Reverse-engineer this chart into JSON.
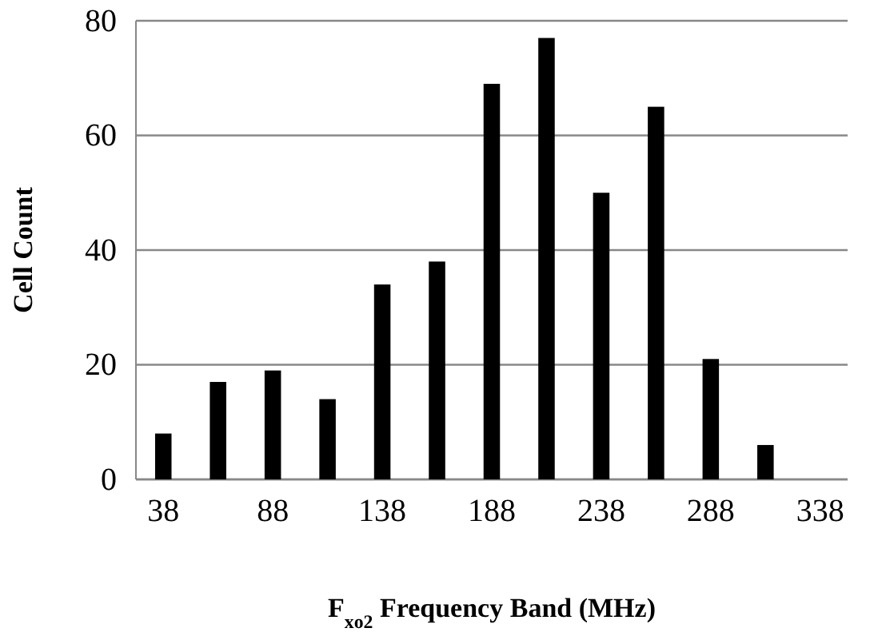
{
  "chart_data": {
    "type": "bar",
    "xlabel": "F$_{xo2}$ Frequency Band (MHz)",
    "ylabel": "Cell Count",
    "categories": [
      "38",
      null,
      "88",
      null,
      "138",
      null,
      "188",
      null,
      "238",
      null,
      "288",
      null,
      "338"
    ],
    "values": [
      8,
      17,
      19,
      14,
      34,
      38,
      69,
      77,
      50,
      65,
      21,
      6,
      null
    ],
    "color": "#000000",
    "ylim": [
      0,
      80
    ],
    "yticks": [
      0,
      20,
      40,
      60,
      80
    ],
    "grid": "y"
  }
}
